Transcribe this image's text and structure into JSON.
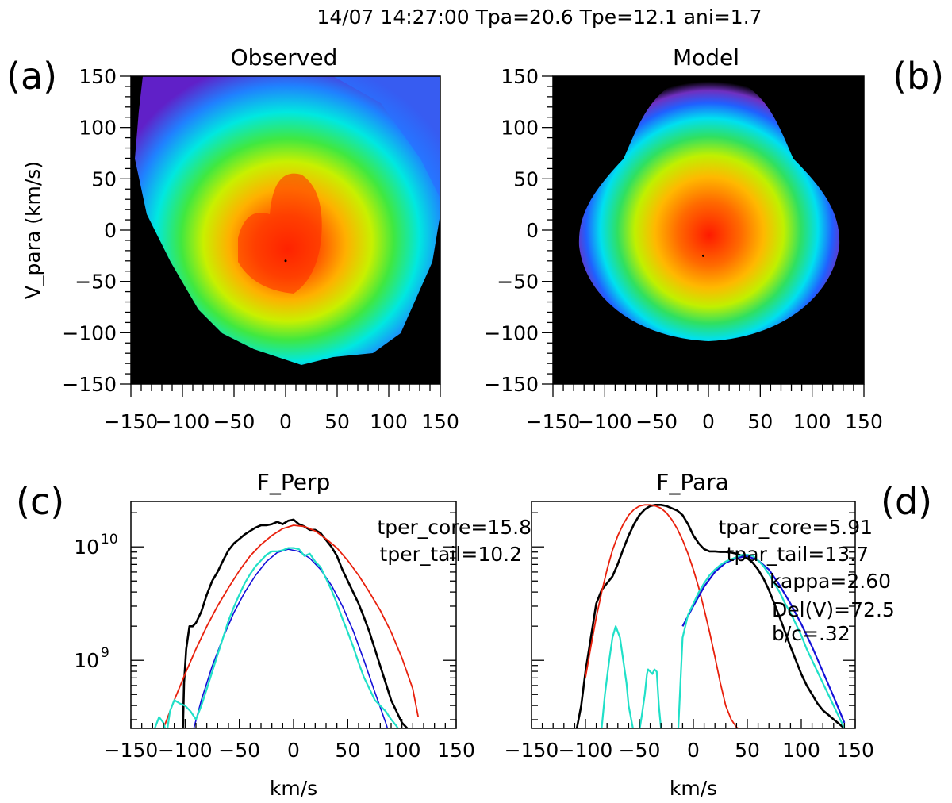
{
  "header": {
    "title": "14/07 14:27:00 Tpa=20.6 Tpe=12.1 ani=1.7"
  },
  "panel_letters": {
    "a": "(a)",
    "b": "(b)",
    "c": "(c)",
    "d": "(d)"
  },
  "colors": {
    "black": "#000000",
    "red": "#e8200c",
    "blue": "#1410d8",
    "cyan": "#20e0c8",
    "axis": "#000000"
  },
  "chart_data": [
    {
      "id": "observed",
      "type": "heatmap",
      "title": "Observed",
      "xlabel": "",
      "ylabel": "V_para (km/s)",
      "xlim": [
        -150,
        150
      ],
      "ylim": [
        -150,
        150
      ],
      "xticks": [
        -150,
        -100,
        -50,
        0,
        50,
        100,
        150
      ],
      "yticks": [
        -150,
        -100,
        -50,
        0,
        50,
        100,
        150
      ],
      "xtick_labels": [
        "−150",
        "−100",
        "−50",
        "0",
        "50",
        "100",
        "150"
      ],
      "ytick_labels": [
        "−150",
        "−100",
        "−50",
        "0",
        "50",
        "100",
        "150"
      ],
      "peak": [
        0,
        -30
      ]
    },
    {
      "id": "model",
      "type": "heatmap",
      "title": "Model",
      "xlabel": "",
      "ylabel": "",
      "xlim": [
        -150,
        150
      ],
      "ylim": [
        -150,
        150
      ],
      "xticks": [
        -150,
        -100,
        -50,
        0,
        50,
        100,
        150
      ],
      "yticks": [
        -150,
        -100,
        -50,
        0,
        50,
        100,
        150
      ],
      "xtick_labels": [
        "−150",
        "−100",
        "−50",
        "0",
        "50",
        "100",
        "150"
      ],
      "ytick_labels": [
        "−150",
        "−100",
        "−50",
        "0",
        "50",
        "100",
        "150"
      ],
      "peak": [
        -5,
        -25
      ]
    },
    {
      "id": "f_perp",
      "type": "line",
      "title": "F_Perp",
      "xlabel": "km/s",
      "xlim": [
        -150,
        150
      ],
      "ylog_range": [
        8.4,
        10.4
      ],
      "xticks": [
        -150,
        -100,
        -50,
        0,
        50,
        100,
        150
      ],
      "xtick_labels": [
        "−150",
        "−100",
        "−50",
        "0",
        "50",
        "100",
        "150"
      ],
      "yticks": [
        {
          "log": 10,
          "label": "10",
          "exp": "10"
        },
        {
          "log": 9,
          "label": "10",
          "exp": "9"
        }
      ],
      "annotations": [
        "tper_core=15.8",
        "tper_tail=10.2"
      ],
      "series": [
        {
          "name": "observed",
          "color": "#000000",
          "width": 2.6,
          "x": [
            -102,
            -101,
            -99,
            -96,
            -93,
            -90,
            -85,
            -80,
            -75,
            -70,
            -65,
            -60,
            -55,
            -50,
            -45,
            -40,
            -35,
            -30,
            -25,
            -20,
            -15,
            -10,
            -5,
            0,
            5,
            10,
            15,
            20,
            25,
            30,
            35,
            40,
            45,
            50,
            55,
            60,
            65,
            70,
            75,
            80,
            85,
            90,
            95,
            100,
            105,
            110
          ],
          "y": [
            8.4,
            8.8,
            9.1,
            9.3,
            9.3,
            9.33,
            9.43,
            9.58,
            9.7,
            9.78,
            9.88,
            9.97,
            10.03,
            10.07,
            10.11,
            10.14,
            10.17,
            10.19,
            10.19,
            10.2,
            10.22,
            10.2,
            10.23,
            10.24,
            10.2,
            10.18,
            10.15,
            10.15,
            10.12,
            10.06,
            10.0,
            9.92,
            9.8,
            9.7,
            9.6,
            9.5,
            9.38,
            9.25,
            9.1,
            8.95,
            8.8,
            8.65,
            8.55,
            8.45,
            8.4,
            8.35
          ]
        },
        {
          "name": "core fit",
          "color": "#e8200c",
          "width": 1.8,
          "x": [
            -125,
            -120,
            -110,
            -100,
            -90,
            -80,
            -70,
            -60,
            -50,
            -40,
            -30,
            -20,
            -10,
            0,
            10,
            20,
            30,
            40,
            50,
            60,
            70,
            80,
            90,
            100,
            110,
            115
          ],
          "y": [
            8.28,
            8.4,
            8.65,
            8.88,
            9.1,
            9.3,
            9.48,
            9.64,
            9.79,
            9.92,
            10.02,
            10.1,
            10.16,
            10.19,
            10.18,
            10.14,
            10.07,
            9.99,
            9.88,
            9.75,
            9.6,
            9.44,
            9.25,
            9.02,
            8.75,
            8.5
          ]
        },
        {
          "name": "tail fit",
          "color": "#1410d8",
          "width": 1.6,
          "x": [
            -92,
            -85,
            -75,
            -65,
            -55,
            -45,
            -35,
            -25,
            -15,
            -5,
            5,
            15,
            25,
            35,
            45,
            55,
            65,
            75,
            85,
            90
          ],
          "y": [
            8.4,
            8.65,
            8.95,
            9.2,
            9.42,
            9.6,
            9.75,
            9.87,
            9.95,
            9.98,
            9.96,
            9.9,
            9.8,
            9.66,
            9.48,
            9.26,
            9.0,
            8.72,
            8.45,
            8.3
          ]
        },
        {
          "name": "tail observed",
          "color": "#20e0c8",
          "width": 2.2,
          "x": [
            -128,
            -124,
            -120,
            -117,
            -114,
            -110,
            -105,
            -100,
            -95,
            -90,
            -85,
            -80,
            -75,
            -70,
            -65,
            -60,
            -55,
            -50,
            -45,
            -40,
            -35,
            -30,
            -25,
            -20,
            -15,
            -10,
            -5,
            0,
            5,
            10,
            15,
            20,
            25,
            30,
            35,
            40,
            45,
            50,
            55,
            60,
            65,
            70,
            75,
            80,
            85,
            90,
            95,
            100
          ],
          "y": [
            8.4,
            8.5,
            8.45,
            8.35,
            8.55,
            8.65,
            8.62,
            8.6,
            8.55,
            8.48,
            8.6,
            8.75,
            8.9,
            9.05,
            9.2,
            9.35,
            9.47,
            9.58,
            9.68,
            9.76,
            9.83,
            9.88,
            9.93,
            9.96,
            9.96,
            9.97,
            9.99,
            9.99,
            9.98,
            9.92,
            9.94,
            9.87,
            9.82,
            9.72,
            9.62,
            9.5,
            9.37,
            9.25,
            9.12,
            8.98,
            8.85,
            8.75,
            8.65,
            8.6,
            8.55,
            8.48,
            8.42,
            8.35
          ]
        }
      ]
    },
    {
      "id": "f_para",
      "type": "line",
      "title": "F_Para",
      "xlabel": "km/s",
      "xlim": [
        -150,
        150
      ],
      "ylog_range": [
        8.4,
        10.4
      ],
      "xticks": [
        -150,
        -100,
        -50,
        0,
        50,
        100,
        150
      ],
      "xtick_labels": [
        "−150",
        "−100",
        "−50",
        "0",
        "50",
        "100",
        "150"
      ],
      "annotations": [
        "tpar_core=5.91",
        "tpar_tail=13.7",
        "kappa=2.60",
        "Del(V)=72.5",
        "b/c=.32"
      ],
      "series": [
        {
          "name": "observed",
          "color": "#000000",
          "width": 2.6,
          "x": [
            -108,
            -104,
            -100,
            -95,
            -90,
            -85,
            -80,
            -75,
            -70,
            -65,
            -60,
            -55,
            -50,
            -45,
            -40,
            -35,
            -30,
            -25,
            -20,
            -15,
            -10,
            -5,
            0,
            5,
            10,
            15,
            20,
            25,
            30,
            35,
            40,
            45,
            50,
            55,
            60,
            65,
            70,
            75,
            80,
            85,
            90,
            95,
            100,
            105,
            110,
            115,
            120,
            125,
            130,
            135,
            140
          ],
          "y": [
            8.4,
            8.6,
            8.9,
            9.2,
            9.5,
            9.62,
            9.68,
            9.74,
            9.85,
            9.98,
            10.1,
            10.2,
            10.28,
            10.33,
            10.36,
            10.37,
            10.37,
            10.36,
            10.34,
            10.32,
            10.28,
            10.2,
            10.1,
            10.03,
            9.98,
            9.96,
            9.96,
            9.955,
            9.955,
            9.95,
            9.94,
            9.92,
            9.9,
            9.86,
            9.8,
            9.72,
            9.62,
            9.5,
            9.38,
            9.25,
            9.12,
            9.0,
            8.88,
            8.78,
            8.7,
            8.62,
            8.56,
            8.52,
            8.48,
            8.44,
            8.4
          ]
        },
        {
          "name": "core fit",
          "color": "#e8200c",
          "width": 1.8,
          "x": [
            -100,
            -95,
            -90,
            -85,
            -80,
            -75,
            -70,
            -65,
            -60,
            -55,
            -50,
            -45,
            -40,
            -35,
            -30,
            -25,
            -20,
            -15,
            -10,
            -5,
            0,
            5,
            10,
            15,
            20,
            25,
            30,
            35,
            40,
            45
          ],
          "y": [
            8.85,
            9.12,
            9.38,
            9.6,
            9.8,
            9.97,
            10.1,
            10.2,
            10.28,
            10.33,
            10.36,
            10.37,
            10.37,
            10.36,
            10.34,
            10.3,
            10.24,
            10.16,
            10.06,
            9.94,
            9.8,
            9.64,
            9.45,
            9.25,
            9.03,
            8.8,
            8.6,
            8.48,
            8.41,
            8.38
          ]
        },
        {
          "name": "tail fit",
          "color": "#1410d8",
          "width": 2.2,
          "x": [
            -10,
            0,
            10,
            20,
            30,
            40,
            50,
            60,
            70,
            80,
            90,
            100,
            110,
            120,
            130,
            140
          ],
          "y": [
            9.3,
            9.48,
            9.65,
            9.78,
            9.86,
            9.9,
            9.92,
            9.88,
            9.8,
            9.66,
            9.5,
            9.32,
            9.12,
            8.9,
            8.68,
            8.45
          ]
        },
        {
          "name": "tail observed",
          "color": "#20e0c8",
          "width": 2.2,
          "x": [
            -85,
            -82,
            -78,
            -75,
            -72,
            -68,
            -65,
            -62,
            -60,
            -57,
            -55,
            -52,
            -50,
            -48,
            -45,
            -43,
            -42,
            -40,
            -38,
            -36,
            -34,
            -32,
            -30,
            -28,
            -25,
            -22,
            -20,
            -18
          ],
          "y": [
            8.4,
            8.7,
            9.0,
            9.2,
            9.3,
            9.2,
            9.0,
            8.8,
            8.6,
            8.45,
            8.35,
            8.35,
            8.38,
            8.5,
            8.7,
            8.88,
            8.92,
            8.9,
            8.88,
            8.92,
            8.9,
            8.6,
            8.4,
            8.35,
            8.35,
            8.35,
            8.35,
            8.35
          ]
        },
        {
          "name": "tail observed right",
          "color": "#20e0c8",
          "width": 2.2,
          "x": [
            -14,
            -12,
            -10,
            -5,
            0,
            5,
            10,
            15,
            20,
            25,
            30,
            35,
            40,
            45,
            50,
            55,
            60,
            65,
            70,
            75,
            80,
            85,
            90,
            95,
            100,
            105,
            110,
            115,
            120,
            125,
            130,
            135,
            140
          ],
          "y": [
            8.4,
            8.8,
            9.2,
            9.4,
            9.5,
            9.6,
            9.68,
            9.75,
            9.8,
            9.84,
            9.87,
            9.89,
            9.91,
            9.93,
            9.93,
            9.92,
            9.88,
            9.83,
            9.76,
            9.68,
            9.6,
            9.5,
            9.42,
            9.32,
            9.22,
            9.1,
            9.0,
            8.9,
            8.8,
            8.7,
            8.6,
            8.5,
            8.4
          ]
        }
      ]
    }
  ]
}
